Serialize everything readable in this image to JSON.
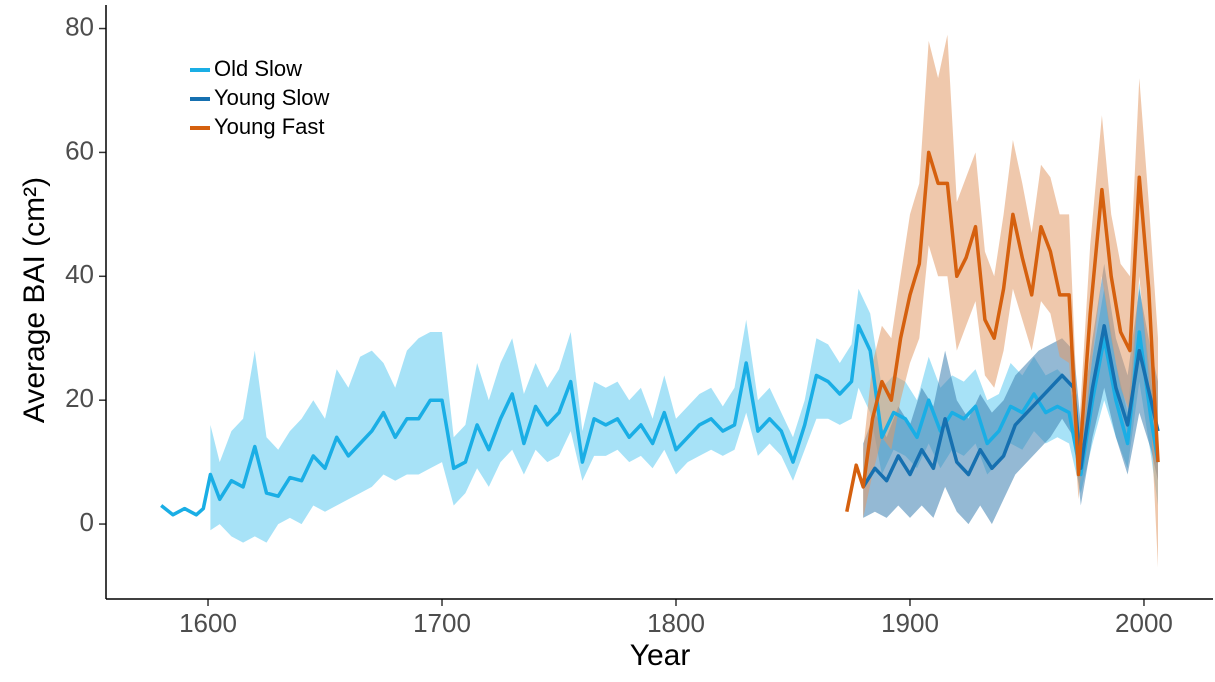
{
  "chart_data": {
    "type": "line",
    "x_label": "Year",
    "y_label": "Average BAI (cm²)",
    "xlim": [
      1556.4,
      2029.5
    ],
    "ylim": [
      -12.1,
      83.8
    ],
    "xticks": [
      1600,
      1700,
      1800,
      1900,
      2000
    ],
    "yticks": [
      0,
      20,
      40,
      60,
      80
    ],
    "grid": false,
    "legend": "top-left",
    "series": [
      {
        "name": "Old Slow",
        "color": "#1aaee5",
        "fill_color": "#5ecbf0",
        "x": [
          1580,
          1585,
          1590,
          1595,
          1598,
          1601,
          1605,
          1610,
          1615,
          1620,
          1625,
          1630,
          1635,
          1640,
          1645,
          1650,
          1655,
          1660,
          1665,
          1670,
          1675,
          1680,
          1685,
          1690,
          1695,
          1700,
          1705,
          1710,
          1715,
          1720,
          1725,
          1730,
          1735,
          1740,
          1745,
          1750,
          1755,
          1760,
          1765,
          1770,
          1775,
          1780,
          1785,
          1790,
          1795,
          1800,
          1805,
          1810,
          1815,
          1820,
          1825,
          1830,
          1835,
          1840,
          1845,
          1850,
          1855,
          1860,
          1865,
          1870,
          1875,
          1878,
          1883,
          1888,
          1893,
          1898,
          1903,
          1908,
          1913,
          1918,
          1923,
          1928,
          1933,
          1938,
          1943,
          1948,
          1953,
          1958,
          1963,
          1968,
          1973,
          1978,
          1983,
          1988,
          1993,
          1998,
          2003,
          2006
        ],
        "values": [
          3,
          1.5,
          2.5,
          1.5,
          2.5,
          8,
          4,
          7,
          6,
          12.5,
          5,
          4.5,
          7.5,
          7,
          11,
          9,
          14,
          11,
          13,
          15,
          18,
          14,
          17,
          17,
          20,
          20,
          9,
          10,
          16,
          12,
          17,
          21,
          13,
          19,
          16,
          18,
          23,
          10,
          17,
          16,
          17,
          14,
          16,
          13,
          18,
          12,
          14,
          16,
          17,
          15,
          16,
          26,
          15,
          17,
          15,
          10,
          16,
          24,
          23,
          21,
          23,
          32,
          28,
          14,
          18,
          17,
          14,
          20,
          15,
          18,
          17,
          19,
          13,
          15,
          19,
          18,
          21,
          18,
          19,
          18,
          8,
          20,
          30,
          20,
          13,
          31,
          17,
          10
        ],
        "lower": [
          null,
          null,
          null,
          null,
          null,
          -1,
          0,
          -2,
          -3,
          -2,
          -3,
          0,
          1,
          0,
          3,
          2,
          3,
          4,
          5,
          6,
          8,
          7,
          8,
          8,
          9,
          10,
          3,
          5,
          9,
          6,
          10,
          12,
          8,
          12,
          10,
          11,
          15,
          7,
          11,
          11,
          12,
          10,
          11,
          9,
          12,
          8,
          10,
          11,
          12,
          11,
          12,
          18,
          11,
          13,
          11,
          7,
          12,
          17,
          17,
          16,
          17,
          22,
          18,
          8,
          12,
          11,
          9,
          13,
          9,
          12,
          11,
          13,
          8,
          10,
          13,
          12,
          15,
          13,
          14,
          13,
          5,
          13,
          20,
          14,
          9,
          23,
          11,
          3
        ],
        "upper": [
          null,
          null,
          null,
          null,
          null,
          16,
          10,
          15,
          17,
          28,
          14,
          12,
          15,
          17,
          20,
          17,
          25,
          22,
          27,
          28,
          26,
          22,
          28,
          30,
          31,
          31,
          14,
          16,
          26,
          20,
          26,
          30,
          21,
          26,
          22,
          25,
          31,
          15,
          23,
          22,
          23,
          20,
          22,
          17,
          24,
          17,
          19,
          21,
          22,
          19,
          22,
          33,
          20,
          22,
          18,
          14,
          20,
          30,
          29,
          26,
          29,
          38,
          34,
          22,
          24,
          23,
          20,
          27,
          22,
          24,
          23,
          25,
          20,
          21,
          26,
          24,
          27,
          24,
          25,
          23,
          12,
          27,
          38,
          26,
          18,
          39,
          23,
          17
        ]
      },
      {
        "name": "Young Slow",
        "color": "#1670b0",
        "fill_color": "#3d7fb0",
        "x": [
          1880,
          1885,
          1890,
          1895,
          1900,
          1905,
          1910,
          1915,
          1920,
          1925,
          1930,
          1935,
          1940,
          1945,
          1950,
          1955,
          1960,
          1965,
          1970,
          1973,
          1978,
          1983,
          1988,
          1993,
          1998,
          2003,
          2006
        ],
        "values": [
          6,
          9,
          7,
          11,
          8,
          12,
          9,
          17,
          10,
          8,
          12,
          9,
          11,
          16,
          18,
          20,
          22,
          24,
          22,
          9,
          22,
          32,
          22,
          16,
          28,
          20,
          15
        ],
        "lower": [
          1,
          2,
          1,
          3,
          1,
          3,
          1,
          6,
          2,
          0,
          3,
          0,
          4,
          8,
          10,
          12,
          14,
          17,
          14,
          3,
          14,
          22,
          14,
          8,
          18,
          12,
          7
        ],
        "upper": [
          13,
          18,
          14,
          19,
          16,
          22,
          19,
          28,
          20,
          17,
          21,
          18,
          20,
          24,
          26,
          28,
          29,
          30,
          28,
          16,
          30,
          42,
          30,
          24,
          38,
          28,
          23
        ]
      },
      {
        "name": "Young Fast",
        "color": "#d5600e",
        "fill_color": "#e29a68",
        "x": [
          1873,
          1877,
          1880,
          1884,
          1888,
          1892,
          1896,
          1900,
          1904,
          1908,
          1912,
          1916,
          1920,
          1924,
          1928,
          1932,
          1936,
          1940,
          1944,
          1948,
          1952,
          1956,
          1960,
          1964,
          1968,
          1972,
          1977,
          1982,
          1986,
          1990,
          1994,
          1998,
          2002,
          2006
        ],
        "values": [
          2,
          9.5,
          6,
          17,
          23,
          20,
          30,
          37,
          42,
          60,
          55,
          55,
          40,
          43,
          48,
          33,
          30,
          38,
          50,
          43,
          37,
          48,
          44,
          37,
          37,
          8,
          34,
          54,
          40,
          31,
          28,
          56,
          38,
          10
        ],
        "lower": [
          null,
          null,
          1,
          8,
          14,
          12,
          20,
          26,
          30,
          45,
          40,
          40,
          28,
          32,
          36,
          24,
          22,
          28,
          38,
          33,
          28,
          36,
          34,
          27,
          26,
          4,
          24,
          40,
          30,
          22,
          18,
          40,
          24,
          -7
        ],
        "upper": [
          null,
          null,
          12,
          26,
          32,
          30,
          40,
          50,
          55,
          78,
          72,
          79,
          52,
          56,
          60,
          44,
          40,
          50,
          62,
          55,
          47,
          58,
          56,
          50,
          50,
          14,
          45,
          66,
          50,
          42,
          40,
          72,
          52,
          30
        ]
      }
    ]
  }
}
